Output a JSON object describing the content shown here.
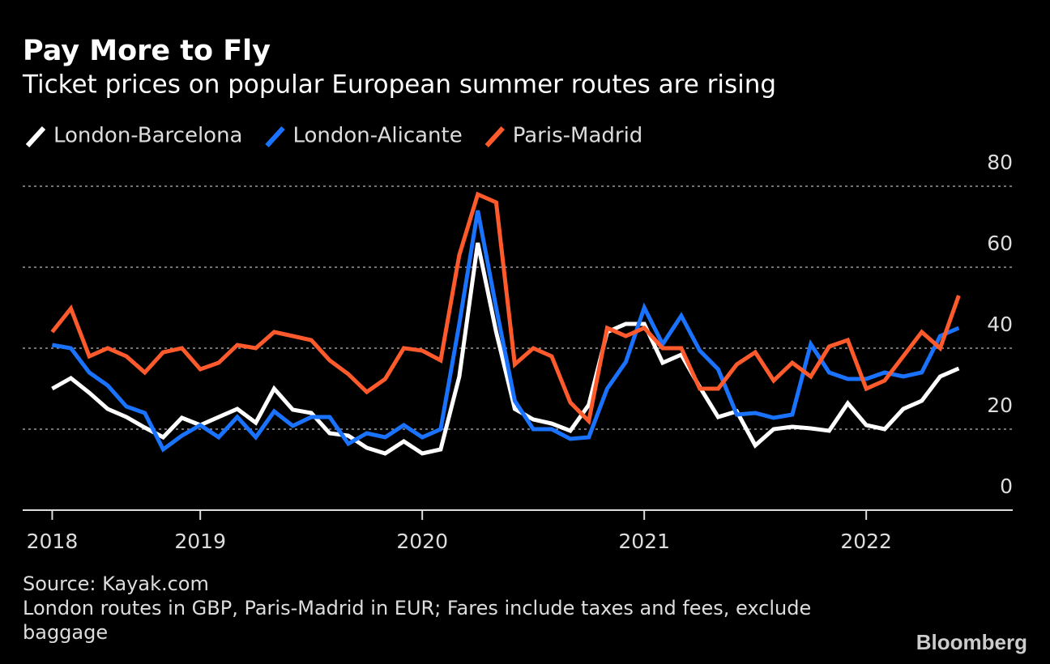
{
  "chart_data": {
    "type": "line",
    "title": "Pay More to Fly",
    "subtitle": "Ticket prices on popular European summer routes are rising",
    "x": [
      2018.333,
      2018.417,
      2018.5,
      2018.583,
      2018.667,
      2018.75,
      2018.833,
      2018.917,
      2019,
      2019.083,
      2019.167,
      2019.25,
      2019.333,
      2019.417,
      2019.5,
      2019.583,
      2019.667,
      2019.75,
      2019.833,
      2019.917,
      2020,
      2020.083,
      2020.167,
      2020.25,
      2020.333,
      2020.417,
      2020.5,
      2020.583,
      2020.667,
      2020.75,
      2020.833,
      2020.917,
      2021,
      2021.083,
      2021.167,
      2021.25,
      2021.333,
      2021.417,
      2021.5,
      2021.583,
      2021.667,
      2021.75,
      2021.833,
      2021.917,
      2022,
      2022.083,
      2022.167,
      2022.25,
      2022.333,
      2022.417
    ],
    "series": [
      {
        "name": "London-Barcelona",
        "color": "#ffffff",
        "values": [
          30,
          32.6,
          29,
          25,
          23,
          20.4,
          18,
          22.8,
          21,
          23,
          25,
          21.6,
          30,
          24.8,
          24,
          19,
          18.4,
          15.4,
          14,
          17,
          14,
          15,
          33,
          66,
          44,
          25,
          22.4,
          21.4,
          19.6,
          26,
          44,
          46,
          46,
          36.4,
          38.4,
          30.4,
          23,
          24.4,
          16,
          20,
          20.6,
          20.2,
          19.6,
          26.4,
          21,
          20,
          25,
          27,
          33,
          35
        ]
      },
      {
        "name": "London-Alicante",
        "color": "#1a73ff",
        "values": [
          40.8,
          40,
          34,
          30.8,
          25.6,
          24,
          15,
          18.4,
          21,
          18,
          23,
          18,
          24.4,
          20.8,
          23,
          23,
          16.4,
          19,
          18,
          21,
          18,
          20,
          46,
          74,
          50,
          27,
          20,
          20,
          17.6,
          18,
          30,
          36.6,
          50,
          41,
          48,
          39.4,
          34.8,
          23.6,
          24,
          22.8,
          23.6,
          41,
          34,
          32.4,
          32.4,
          34,
          33,
          34,
          43,
          45
        ]
      },
      {
        "name": "Paris-Madrid",
        "color": "#ff5a2c",
        "values": [
          44,
          49.8,
          38,
          40,
          38,
          34,
          39,
          40,
          34.8,
          36.4,
          40.8,
          40,
          44,
          43,
          42,
          37,
          33.6,
          29.2,
          32.4,
          40,
          39.4,
          37,
          63,
          78,
          76,
          36,
          40,
          38,
          26.6,
          22,
          45,
          43,
          45,
          40,
          40,
          30,
          30,
          36,
          39,
          32,
          36.4,
          33,
          40.4,
          42,
          30,
          32,
          38,
          44,
          40,
          53
        ]
      }
    ],
    "xlim": [
      2018.2,
      2022.66
    ],
    "xticks": [
      {
        "value": 2018.333,
        "label": "2018"
      },
      2019,
      2020,
      2021,
      2022
    ],
    "ylim": [
      0,
      80
    ],
    "yticks": [
      0,
      20,
      40,
      60,
      80
    ],
    "grid": true,
    "source": "Source: Kayak.com",
    "note": "London routes in GBP, Paris-Madrid in EUR; Fares include taxes and fees, exclude baggage",
    "brand": "Bloomberg"
  }
}
